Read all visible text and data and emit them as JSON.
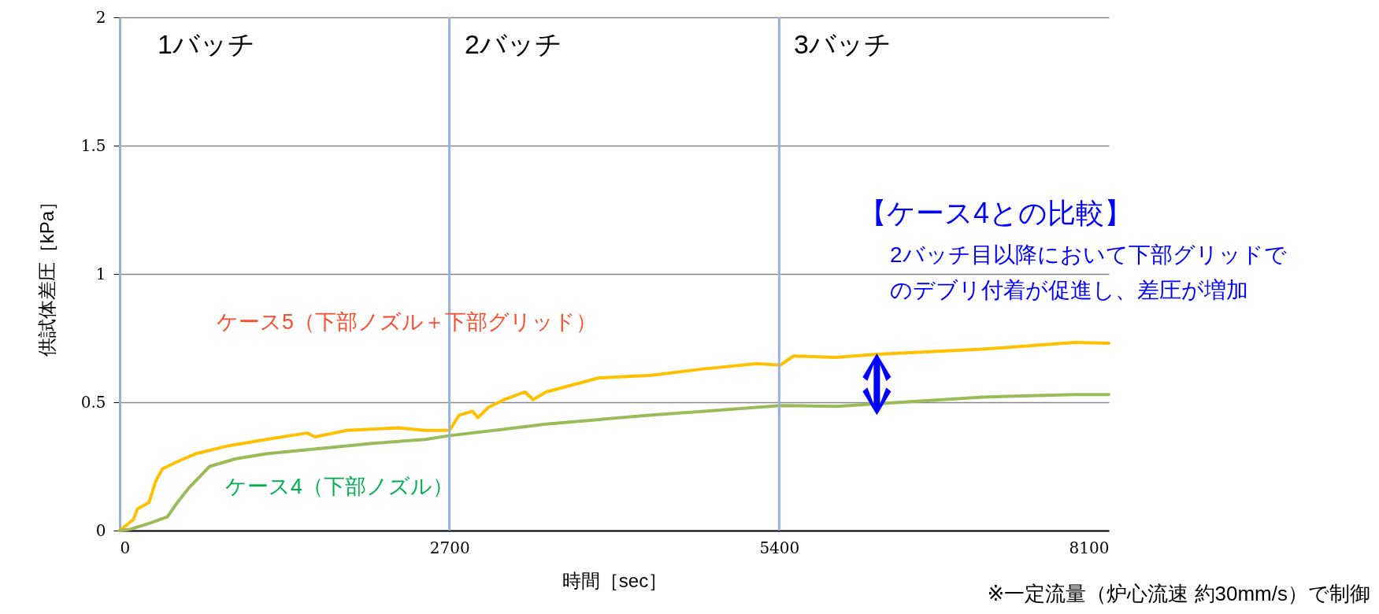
{
  "chart_data": {
    "type": "line",
    "xlabel": "時間［sec］",
    "ylabel": "供試体差圧［kPa］",
    "xlim": [
      0,
      8100
    ],
    "xticks": [
      0,
      2700,
      5400,
      8100
    ],
    "ylim": [
      0,
      2
    ],
    "yticks": [
      0,
      0.5,
      1,
      1.5,
      2
    ],
    "grid": "y",
    "legend": false,
    "series": [
      {
        "name": "ケース5（下部ノズル＋下部グリッド）",
        "color": "#ffc000",
        "x": [
          0,
          112,
          145,
          241,
          293,
          349,
          478,
          628,
          887,
          1210,
          1533,
          1600,
          1856,
          2287,
          2502,
          2700,
          2780,
          2890,
          2933,
          3019,
          3148,
          3320,
          3385,
          3491,
          3924,
          4355,
          4783,
          5216,
          5410,
          5517,
          5866,
          6206,
          7067,
          7821,
          8100
        ],
        "values": [
          0,
          0.043,
          0.084,
          0.11,
          0.19,
          0.24,
          0.27,
          0.3,
          0.33,
          0.356,
          0.38,
          0.365,
          0.39,
          0.4,
          0.39,
          0.39,
          0.45,
          0.465,
          0.44,
          0.48,
          0.51,
          0.54,
          0.51,
          0.54,
          0.595,
          0.605,
          0.63,
          0.65,
          0.645,
          0.68,
          0.675,
          0.687,
          0.707,
          0.733,
          0.73
        ]
      },
      {
        "name": "ケース4（下部ノズル）",
        "color": "#9bbb59",
        "x": [
          0,
          86,
          241,
          390,
          465,
          564,
          736,
          952,
          1210,
          1641,
          2070,
          2502,
          2700,
          3148,
          3491,
          4355,
          4783,
          5410,
          5866,
          6400,
          7067,
          7821,
          8100
        ],
        "values": [
          0,
          0.005,
          0.028,
          0.053,
          0.105,
          0.165,
          0.25,
          0.28,
          0.3,
          0.32,
          0.34,
          0.355,
          0.37,
          0.395,
          0.415,
          0.45,
          0.465,
          0.487,
          0.484,
          0.5,
          0.52,
          0.53,
          0.53
        ]
      }
    ],
    "ref_lines": [
      {
        "axis": "x",
        "value": 2700,
        "color": "#95b3d7"
      },
      {
        "axis": "x",
        "value": 5400,
        "color": "#95b3d7"
      }
    ],
    "annotations": [
      "1バッチ",
      "2バッチ",
      "3バッチ",
      "【ケース4との比較】",
      "2バッチ目以降において下部グリッドで",
      "のデブリ付着が促進し、差圧が増加",
      "※一定流量（炉心流速  約30mm/s）で制御"
    ]
  }
}
